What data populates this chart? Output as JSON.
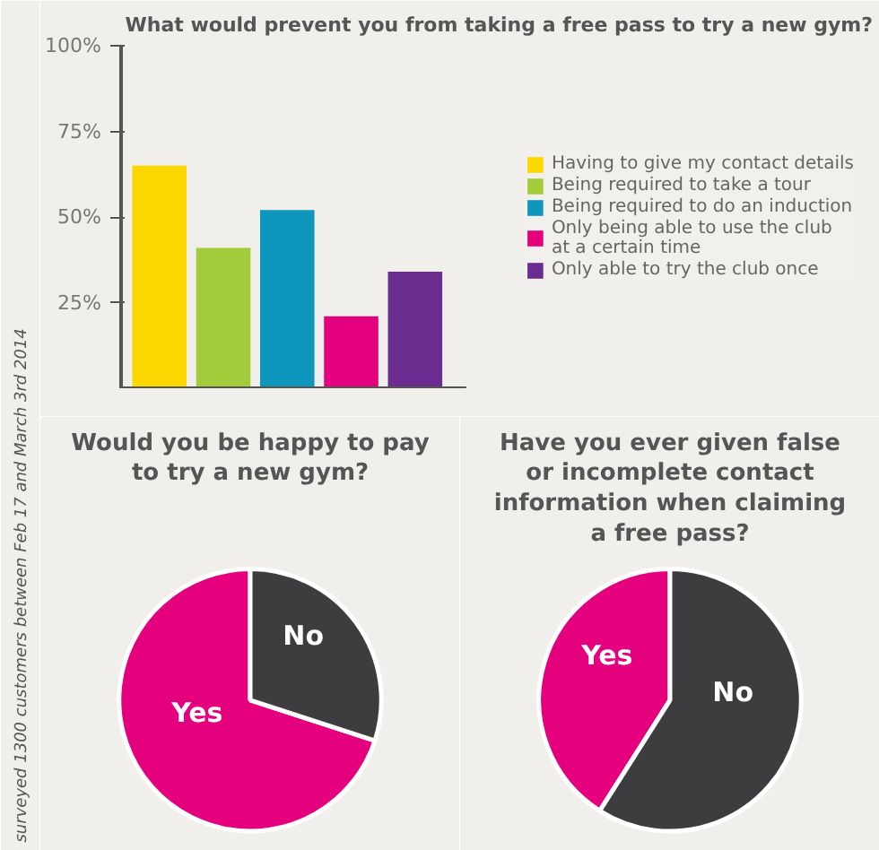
{
  "chart_data": [
    {
      "type": "bar",
      "title": "What would prevent you from taking a free pass to try a new gym?",
      "categories": [
        null
      ],
      "series": [
        {
          "name": "Having to give my contact details",
          "color": "#fcd700",
          "values": [
            65
          ]
        },
        {
          "name": "Being required to take a tour",
          "color": "#a3cc3a",
          "values": [
            41
          ]
        },
        {
          "name": "Being required to do an induction",
          "color": "#0e96bd",
          "values": [
            52
          ]
        },
        {
          "name": "Only being able to use the club at a certain time",
          "color": "#e5007e",
          "values": [
            21
          ]
        },
        {
          "name": "Only able to try the club once",
          "color": "#6a2c8e",
          "values": [
            34
          ]
        }
      ],
      "ylim": [
        0,
        100
      ],
      "yticks": [
        {
          "value": 25,
          "label": "25%"
        },
        {
          "value": 50,
          "label": "50%"
        },
        {
          "value": 75,
          "label": "75%"
        },
        {
          "value": 100,
          "label": "100%"
        }
      ],
      "tick_labels": "y",
      "grid": false,
      "legend": "right",
      "annotations": [
        "surveyed 1300 customers between Feb 17 and March 3rd 2014"
      ]
    },
    {
      "type": "pie",
      "title": "Would you be happy to pay to try a new gym?",
      "categories": [
        "Yes",
        "No"
      ],
      "values": [
        70,
        30
      ],
      "colors": [
        "#e5007e",
        "#3d3d3f"
      ]
    },
    {
      "type": "pie",
      "title": "Have you ever given false or incomplete contact information when claiming a free pass?",
      "categories": [
        "Yes",
        "No"
      ],
      "values": [
        41,
        59
      ],
      "colors": [
        "#e5007e",
        "#3d3d3f"
      ]
    }
  ]
}
